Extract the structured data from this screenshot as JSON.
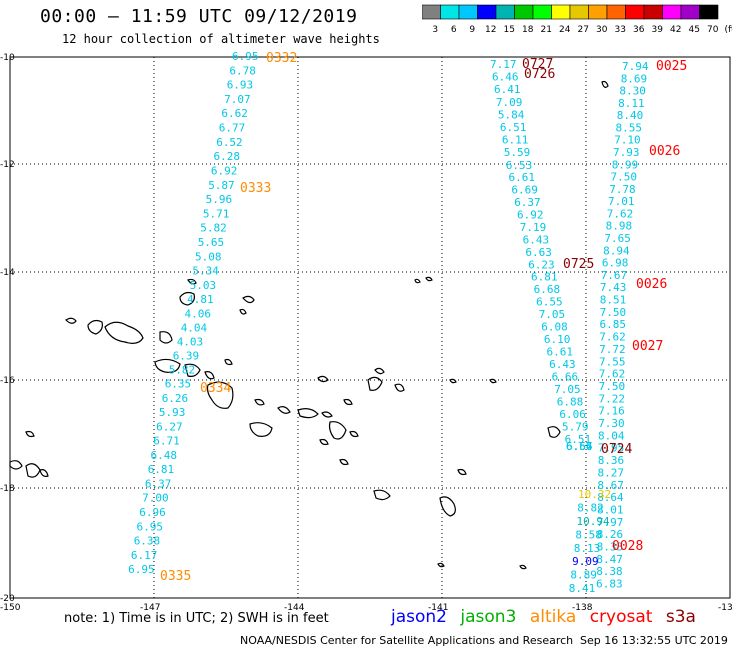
{
  "header": {
    "title": "00:00 – 11:59 UTC 09/12/2019",
    "subtitle": "12 hour collection of altimeter wave heights"
  },
  "color_scale": {
    "labels": [
      "3",
      "6",
      "9",
      "12",
      "15",
      "18",
      "21",
      "24",
      "27",
      "30",
      "33",
      "36",
      "39",
      "42",
      "45",
      "70",
      "(ft)"
    ],
    "colors": [
      "#808080",
      "#00e5e5",
      "#00c8ff",
      "#0000ff",
      "#00b4b4",
      "#00c800",
      "#00ff00",
      "#ffff00",
      "#e6c800",
      "#ffa000",
      "#ff6400",
      "#ff0000",
      "#c80000",
      "#ff00ff",
      "#a000c8",
      "#000000"
    ]
  },
  "axes": {
    "lat_labels": [
      "-10",
      "-12",
      "-14",
      "-16",
      "-18",
      "-20"
    ],
    "lon_labels": [
      "-150",
      "-147",
      "-144",
      "-141",
      "-138",
      "-13"
    ]
  },
  "passes": [
    {
      "label": "0332",
      "color": "#ff8c00"
    },
    {
      "label": "0333",
      "color": "#ff8c00"
    },
    {
      "label": "0334",
      "color": "#ff8c00"
    },
    {
      "label": "0335",
      "color": "#ff8c00"
    },
    {
      "label": "0727",
      "color": "#8b0000"
    },
    {
      "label": "0726",
      "color": "#8b0000"
    },
    {
      "label": "0725",
      "color": "#8b0000"
    },
    {
      "label": "0724",
      "color": "#8b0000"
    },
    {
      "label": "0025",
      "color": "#ff0000"
    },
    {
      "label": "0026",
      "color": "#ff0000"
    },
    {
      "label": "0026",
      "color": "#ff0000"
    },
    {
      "label": "0027",
      "color": "#ff0000"
    },
    {
      "label": "0028",
      "color": "#ff0000"
    }
  ],
  "track_a": {
    "color": "#00c8e6",
    "values": [
      "6.95",
      "6.78",
      "6.93",
      "7.07",
      "6.62",
      "6.77",
      "6.52",
      "6.28",
      "6.92",
      "5.87",
      "5.96",
      "5.71",
      "5.82",
      "5.65",
      "5.08",
      "5.34",
      "5.03",
      "4.81",
      "4.06",
      "4.04",
      "4.03",
      "6.39",
      "5.82",
      "6.35",
      "6.26",
      "5.93",
      "6.27",
      "6.71",
      "6.48",
      "6.81",
      "6.37",
      "7.00",
      "6.96",
      "6.95",
      "6.38",
      "6.17",
      "6.95"
    ]
  },
  "track_b": {
    "color": "#00c8e6",
    "values": [
      "7.17",
      "6.46",
      "6.41",
      "7.09",
      "5.84",
      "6.51",
      "6.11",
      "5.59",
      "6.53",
      "6.61",
      "6.69",
      "6.37",
      "6.92",
      "7.19",
      "6.43",
      "6.63",
      "6.23",
      "6.81",
      "6.68",
      "6.55",
      "7.05",
      "6.08",
      "6.10",
      "6.61",
      "6.43",
      "6.66",
      "7.05",
      "6.88",
      "6.06",
      "5.79",
      "6.51",
      "6.64",
      "6.66",
      "6.57"
    ]
  },
  "track_c": {
    "color": "#00c8e6",
    "values": [
      "7.94",
      "8.69",
      "8.30",
      "8.11",
      "8.40",
      "8.55",
      "7.10",
      "7.93",
      "8.99",
      "7.50",
      "7.78",
      "7.01",
      "7.62",
      "8.98",
      "7.65",
      "8.94",
      "6.98",
      "7.67",
      "7.43",
      "8.51",
      "7.50",
      "6.85",
      "7.62",
      "7.72",
      "7.55",
      "7.62",
      "7.50",
      "7.22",
      "7.16",
      "7.30",
      "8.04",
      "7.95",
      "8.36",
      "8.27",
      "8.67",
      "8.64",
      "8.01",
      "7.97",
      "8.26",
      "8.33",
      "8.47",
      "8.38",
      "6.83"
    ]
  },
  "track_d": {
    "values": [
      "10.32",
      "8.82",
      "10.94",
      "8.58",
      "8.13",
      "9.09",
      "8.89",
      "8.41"
    ],
    "colors": [
      "#e6c800",
      "#00c8e6",
      "#00b4b4",
      "#00c8e6",
      "#00c8e6",
      "#0000ff",
      "#00c8e6",
      "#00c8e6"
    ]
  },
  "note": "note: 1) Time is in UTC; 2) SWH is in feet",
  "legend": [
    {
      "name": "jason2",
      "color": "#0000ff"
    },
    {
      "name": "jason3",
      "color": "#00b000"
    },
    {
      "name": "altika",
      "color": "#ff8c00"
    },
    {
      "name": "cryosat",
      "color": "#ff0000"
    },
    {
      "name": "s3a",
      "color": "#8b0000"
    }
  ],
  "footer": {
    "agency": "NOAA/NESDIS Center for Satellite Applications and Research",
    "timestamp": "Sep 16 13:32:55 UTC 2019"
  }
}
